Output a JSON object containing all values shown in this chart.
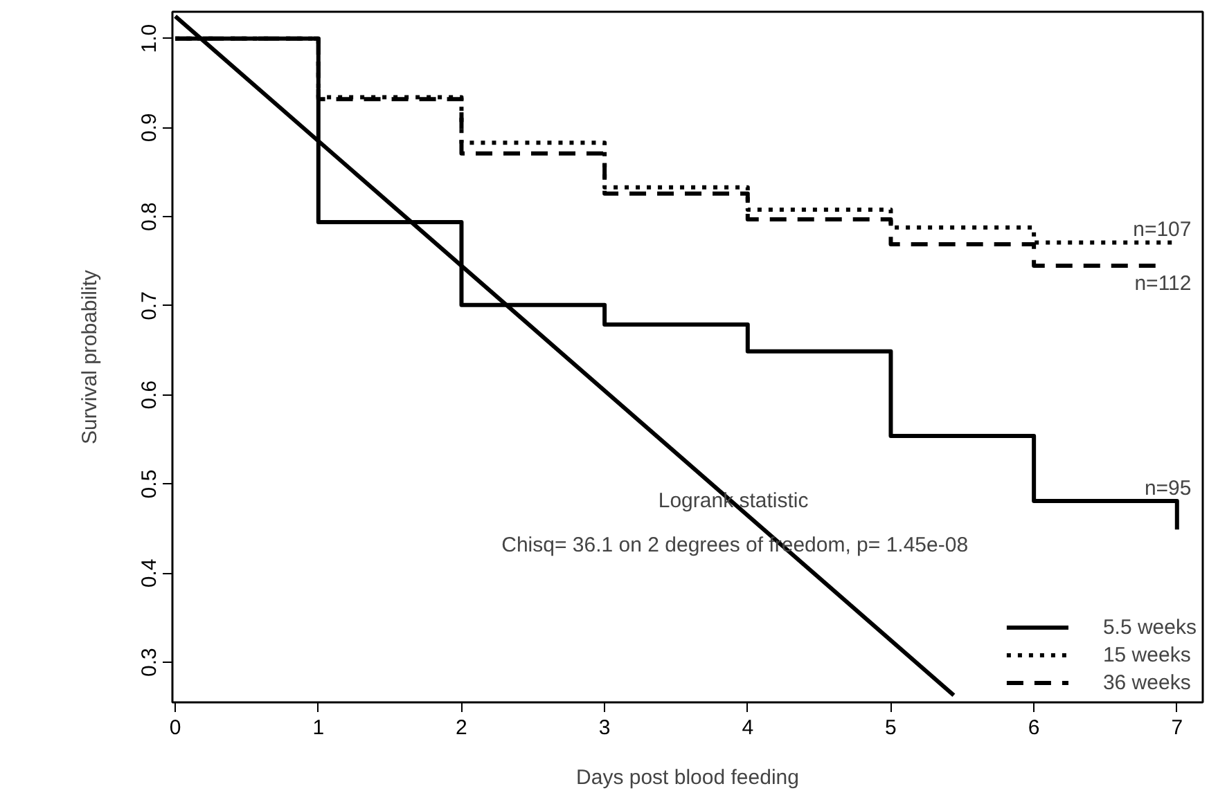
{
  "chart_data": {
    "type": "step",
    "xlabel": "Days post blood feeding",
    "ylabel": "Survival probability",
    "xlim": [
      -0.02,
      7.18
    ],
    "ylim": [
      0.255,
      1.03
    ],
    "xticks": [
      0,
      1,
      2,
      3,
      4,
      5,
      6,
      7
    ],
    "yticks": [
      0.3,
      0.4,
      0.5,
      0.6,
      0.7,
      0.8,
      0.9,
      {
        "value": 1.0,
        "label": "1.0"
      }
    ],
    "grid": false,
    "legend": "bottom right",
    "series": [
      {
        "name": "5.5 weeks",
        "color": "#000000",
        "line_style": "solid",
        "x": [
          0,
          1,
          2,
          3,
          4,
          5,
          6,
          7
        ],
        "values": [
          1.0,
          0.794,
          0.701,
          0.679,
          0.649,
          0.554,
          0.481,
          0.449
        ]
      },
      {
        "name": "15 weeks",
        "color": "#000000",
        "line_style": "dotted",
        "x": [
          0,
          1,
          2,
          3,
          4,
          5,
          6,
          7
        ],
        "values": [
          1.0,
          0.934,
          0.883,
          0.833,
          0.808,
          0.788,
          0.771,
          0.771
        ]
      },
      {
        "name": "36 weeks",
        "color": "#000000",
        "line_style": "dashed",
        "x": [
          0,
          1,
          2,
          3,
          4,
          5,
          6,
          6.85
        ],
        "values": [
          1.0,
          0.932,
          0.871,
          0.826,
          0.797,
          0.769,
          0.745,
          0.745
        ]
      },
      {
        "type": "line",
        "color": "#000000",
        "line_style": "solid",
        "x": [
          0,
          5.44
        ],
        "values": [
          1.025,
          0.263
        ]
      }
    ],
    "annotations": [
      "n=107",
      "n=112",
      "n=95",
      "Logrank statistic",
      "Chisq= 36.1  on 2 degrees of freedom, p= 1.45e-08"
    ]
  }
}
